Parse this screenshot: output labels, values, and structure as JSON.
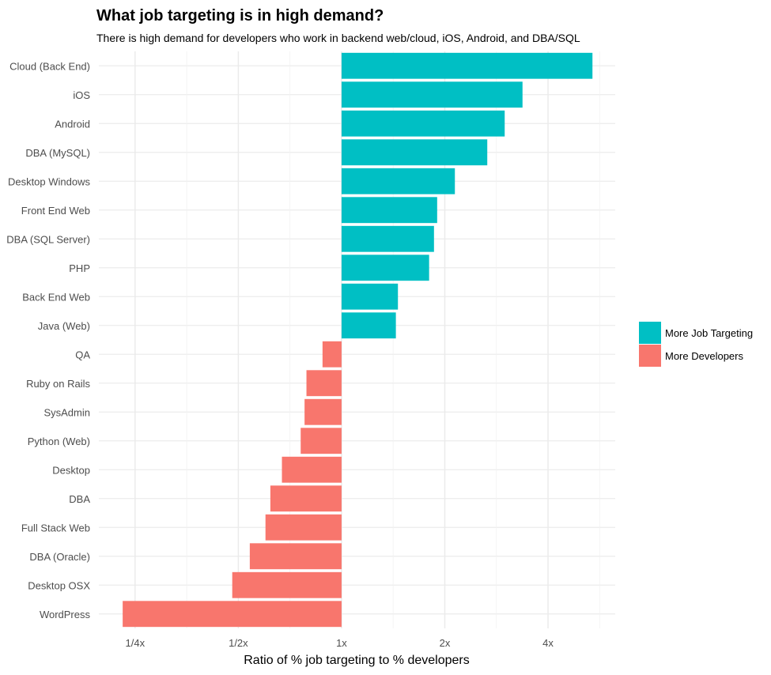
{
  "chart_data": {
    "type": "bar",
    "orientation": "horizontal",
    "title": "What job targeting is in high demand?",
    "subtitle": "There is high demand for developers who work in backend web/cloud, iOS, Android, and DBA/SQL",
    "xlabel": "Ratio of % job targeting to % developers",
    "ylabel": "",
    "x_scale": "log2",
    "xlim": [
      0.196,
      6.28
    ],
    "x_ticks": [
      {
        "value": 0.25,
        "label": "1/4x"
      },
      {
        "value": 0.5,
        "label": "1/2x"
      },
      {
        "value": 1,
        "label": "1x"
      },
      {
        "value": 2,
        "label": "2x"
      },
      {
        "value": 4,
        "label": "4x"
      }
    ],
    "grid": true,
    "categories": [
      "Cloud (Back End)",
      "iOS",
      "Android",
      "DBA (MySQL)",
      "Desktop Windows",
      "Front End Web",
      "DBA (SQL Server)",
      "PHP",
      "Back End Web",
      "Java (Web)",
      "QA",
      "Ruby on Rails",
      "SysAdmin",
      "Python (Web)",
      "Desktop",
      "DBA",
      "Full Stack Web",
      "DBA (Oracle)",
      "Desktop OSX",
      "WordPress"
    ],
    "values": [
      5.39,
      3.37,
      2.99,
      2.66,
      2.14,
      1.9,
      1.86,
      1.8,
      1.46,
      1.44,
      0.88,
      0.79,
      0.78,
      0.76,
      0.67,
      0.62,
      0.6,
      0.54,
      0.48,
      0.23
    ],
    "legend": {
      "position": "right",
      "entries": [
        {
          "label": "More Job Targeting",
          "color": "#00BFC4"
        },
        {
          "label": "More Developers",
          "color": "#F8766D"
        }
      ]
    }
  }
}
